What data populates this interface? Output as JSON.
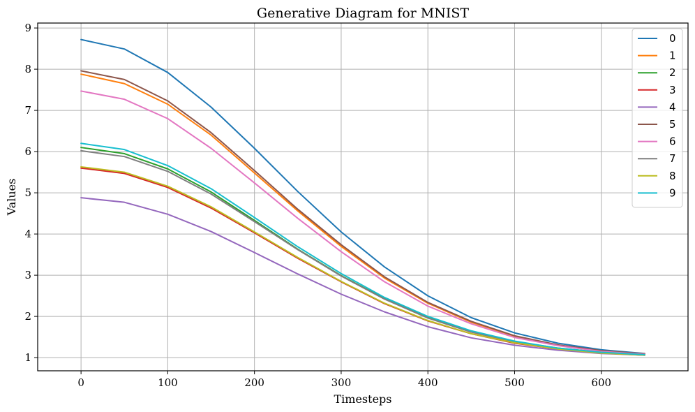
{
  "chart_data": {
    "type": "line",
    "title": "Generative Diagram for MNIST",
    "xlabel": "Timesteps",
    "ylabel": "Values",
    "xlim": [
      -50,
      700
    ],
    "ylim": [
      0.68,
      9.12
    ],
    "xticks": [
      0,
      100,
      200,
      300,
      400,
      500,
      600
    ],
    "yticks": [
      1,
      2,
      3,
      4,
      5,
      6,
      7,
      8,
      9
    ],
    "grid": true,
    "legend_position": "top-right",
    "x": [
      0,
      50,
      100,
      150,
      200,
      250,
      300,
      350,
      400,
      450,
      500,
      550,
      600,
      650
    ],
    "series": [
      {
        "name": "0",
        "color": "#1f77b4",
        "values": [
          8.72,
          8.49,
          7.92,
          7.08,
          6.08,
          5.03,
          4.05,
          3.2,
          2.5,
          1.97,
          1.6,
          1.35,
          1.19,
          1.1
        ]
      },
      {
        "name": "1",
        "color": "#ff7f0e",
        "values": [
          7.88,
          7.65,
          7.15,
          6.4,
          5.48,
          4.56,
          3.7,
          2.93,
          2.32,
          1.86,
          1.52,
          1.3,
          1.16,
          1.09
        ]
      },
      {
        "name": "2",
        "color": "#2ca02c",
        "values": [
          6.1,
          5.95,
          5.58,
          5.02,
          4.33,
          3.63,
          2.99,
          2.43,
          1.97,
          1.63,
          1.39,
          1.23,
          1.13,
          1.07
        ]
      },
      {
        "name": "3",
        "color": "#d62728",
        "values": [
          5.6,
          5.47,
          5.13,
          4.63,
          4.03,
          3.41,
          2.84,
          2.31,
          1.89,
          1.58,
          1.35,
          1.21,
          1.11,
          1.06
        ]
      },
      {
        "name": "4",
        "color": "#9467bd",
        "values": [
          4.88,
          4.77,
          4.48,
          4.06,
          3.55,
          3.03,
          2.54,
          2.11,
          1.75,
          1.48,
          1.3,
          1.18,
          1.1,
          1.06
        ]
      },
      {
        "name": "5",
        "color": "#8c564b",
        "values": [
          7.96,
          7.75,
          7.23,
          6.46,
          5.54,
          4.6,
          3.74,
          2.96,
          2.34,
          1.88,
          1.53,
          1.31,
          1.17,
          1.09
        ]
      },
      {
        "name": "6",
        "color": "#e377c2",
        "values": [
          7.47,
          7.27,
          6.8,
          6.08,
          5.24,
          4.38,
          3.57,
          2.84,
          2.25,
          1.82,
          1.49,
          1.29,
          1.15,
          1.08
        ]
      },
      {
        "name": "7",
        "color": "#7f7f7f",
        "values": [
          6.02,
          5.88,
          5.52,
          4.97,
          4.3,
          3.62,
          2.98,
          2.42,
          1.96,
          1.62,
          1.38,
          1.22,
          1.12,
          1.07
        ]
      },
      {
        "name": "8",
        "color": "#bcbd22",
        "values": [
          5.63,
          5.5,
          5.16,
          4.66,
          4.05,
          3.43,
          2.85,
          2.32,
          1.9,
          1.58,
          1.36,
          1.21,
          1.11,
          1.06
        ]
      },
      {
        "name": "9",
        "color": "#17becf",
        "values": [
          6.2,
          6.05,
          5.66,
          5.1,
          4.4,
          3.69,
          3.04,
          2.46,
          2.0,
          1.65,
          1.4,
          1.23,
          1.13,
          1.07
        ]
      }
    ]
  }
}
